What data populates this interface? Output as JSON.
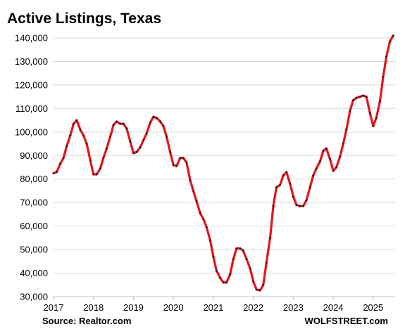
{
  "chart_data": {
    "type": "line",
    "title": "Active Listings, Texas",
    "xlabel": "",
    "ylabel": "",
    "source": "Source: Realtor.com",
    "watermark": "WOLFSTREET.com",
    "xlim": [
      2017.0,
      2025.55
    ],
    "ylim": [
      30000,
      140000
    ],
    "y_ticks": [
      30000,
      40000,
      50000,
      60000,
      70000,
      80000,
      90000,
      100000,
      110000,
      120000,
      130000,
      140000
    ],
    "y_tick_labels": [
      "30,000",
      "40,000",
      "50,000",
      "60,000",
      "70,000",
      "80,000",
      "90,000",
      "100,000",
      "110,000",
      "120,000",
      "130,000",
      "140,000"
    ],
    "x_ticks": [
      2017,
      2018,
      2019,
      2020,
      2021,
      2022,
      2023,
      2024,
      2025
    ],
    "x_tick_labels": [
      "2017",
      "2018",
      "2019",
      "2020",
      "2021",
      "2022",
      "2023",
      "2024",
      "2025"
    ],
    "grid": "horizontal",
    "line_color": "#e8141c",
    "marker_color": "#1a1a1a",
    "series": [
      {
        "values": [
          [
            2017.0,
            82500
          ],
          [
            2017.08,
            83000
          ],
          [
            2017.17,
            86500
          ],
          [
            2017.25,
            89000
          ],
          [
            2017.33,
            94000
          ],
          [
            2017.42,
            98500
          ],
          [
            2017.5,
            103500
          ],
          [
            2017.58,
            105000
          ],
          [
            2017.67,
            101000
          ],
          [
            2017.75,
            98500
          ],
          [
            2017.83,
            95000
          ],
          [
            2017.92,
            88000
          ],
          [
            2018.0,
            82000
          ],
          [
            2018.08,
            82000
          ],
          [
            2018.17,
            84500
          ],
          [
            2018.25,
            89000
          ],
          [
            2018.33,
            93000
          ],
          [
            2018.42,
            98000
          ],
          [
            2018.5,
            103000
          ],
          [
            2018.58,
            104500
          ],
          [
            2018.67,
            103500
          ],
          [
            2018.75,
            103500
          ],
          [
            2018.83,
            101500
          ],
          [
            2018.92,
            96000
          ],
          [
            2019.0,
            91000
          ],
          [
            2019.08,
            91500
          ],
          [
            2019.17,
            93500
          ],
          [
            2019.25,
            96500
          ],
          [
            2019.33,
            99500
          ],
          [
            2019.42,
            104000
          ],
          [
            2019.5,
            106500
          ],
          [
            2019.58,
            106000
          ],
          [
            2019.67,
            104500
          ],
          [
            2019.75,
            102500
          ],
          [
            2019.83,
            98000
          ],
          [
            2019.92,
            91500
          ],
          [
            2020.0,
            86000
          ],
          [
            2020.08,
            85500
          ],
          [
            2020.17,
            89000
          ],
          [
            2020.25,
            89000
          ],
          [
            2020.33,
            87000
          ],
          [
            2020.42,
            79500
          ],
          [
            2020.5,
            75000
          ],
          [
            2020.58,
            70500
          ],
          [
            2020.67,
            65500
          ],
          [
            2020.75,
            63000
          ],
          [
            2020.83,
            59500
          ],
          [
            2020.92,
            54000
          ],
          [
            2021.0,
            47000
          ],
          [
            2021.08,
            41000
          ],
          [
            2021.17,
            38000
          ],
          [
            2021.25,
            36000
          ],
          [
            2021.33,
            36000
          ],
          [
            2021.42,
            39500
          ],
          [
            2021.5,
            46000
          ],
          [
            2021.58,
            50500
          ],
          [
            2021.67,
            50500
          ],
          [
            2021.75,
            49500
          ],
          [
            2021.83,
            46000
          ],
          [
            2021.92,
            42000
          ],
          [
            2022.0,
            36500
          ],
          [
            2022.08,
            33000
          ],
          [
            2022.17,
            32700
          ],
          [
            2022.25,
            35000
          ],
          [
            2022.33,
            44500
          ],
          [
            2022.42,
            55000
          ],
          [
            2022.5,
            68500
          ],
          [
            2022.58,
            76500
          ],
          [
            2022.67,
            77500
          ],
          [
            2022.75,
            81500
          ],
          [
            2022.83,
            83000
          ],
          [
            2022.92,
            78000
          ],
          [
            2023.0,
            72500
          ],
          [
            2023.08,
            69000
          ],
          [
            2023.17,
            68500
          ],
          [
            2023.25,
            68500
          ],
          [
            2023.33,
            71000
          ],
          [
            2023.42,
            76500
          ],
          [
            2023.5,
            81500
          ],
          [
            2023.58,
            84500
          ],
          [
            2023.67,
            87500
          ],
          [
            2023.75,
            92000
          ],
          [
            2023.83,
            93000
          ],
          [
            2023.92,
            88500
          ],
          [
            2024.0,
            83500
          ],
          [
            2024.08,
            85000
          ],
          [
            2024.17,
            89500
          ],
          [
            2024.25,
            95000
          ],
          [
            2024.33,
            101000
          ],
          [
            2024.42,
            109000
          ],
          [
            2024.5,
            113500
          ],
          [
            2024.58,
            114500
          ],
          [
            2024.67,
            115000
          ],
          [
            2024.75,
            115500
          ],
          [
            2024.83,
            115000
          ],
          [
            2024.92,
            108000
          ],
          [
            2025.0,
            102500
          ],
          [
            2025.08,
            106000
          ],
          [
            2025.17,
            113000
          ],
          [
            2025.25,
            123500
          ],
          [
            2025.33,
            132000
          ],
          [
            2025.42,
            138500
          ],
          [
            2025.5,
            141000
          ]
        ]
      }
    ]
  }
}
